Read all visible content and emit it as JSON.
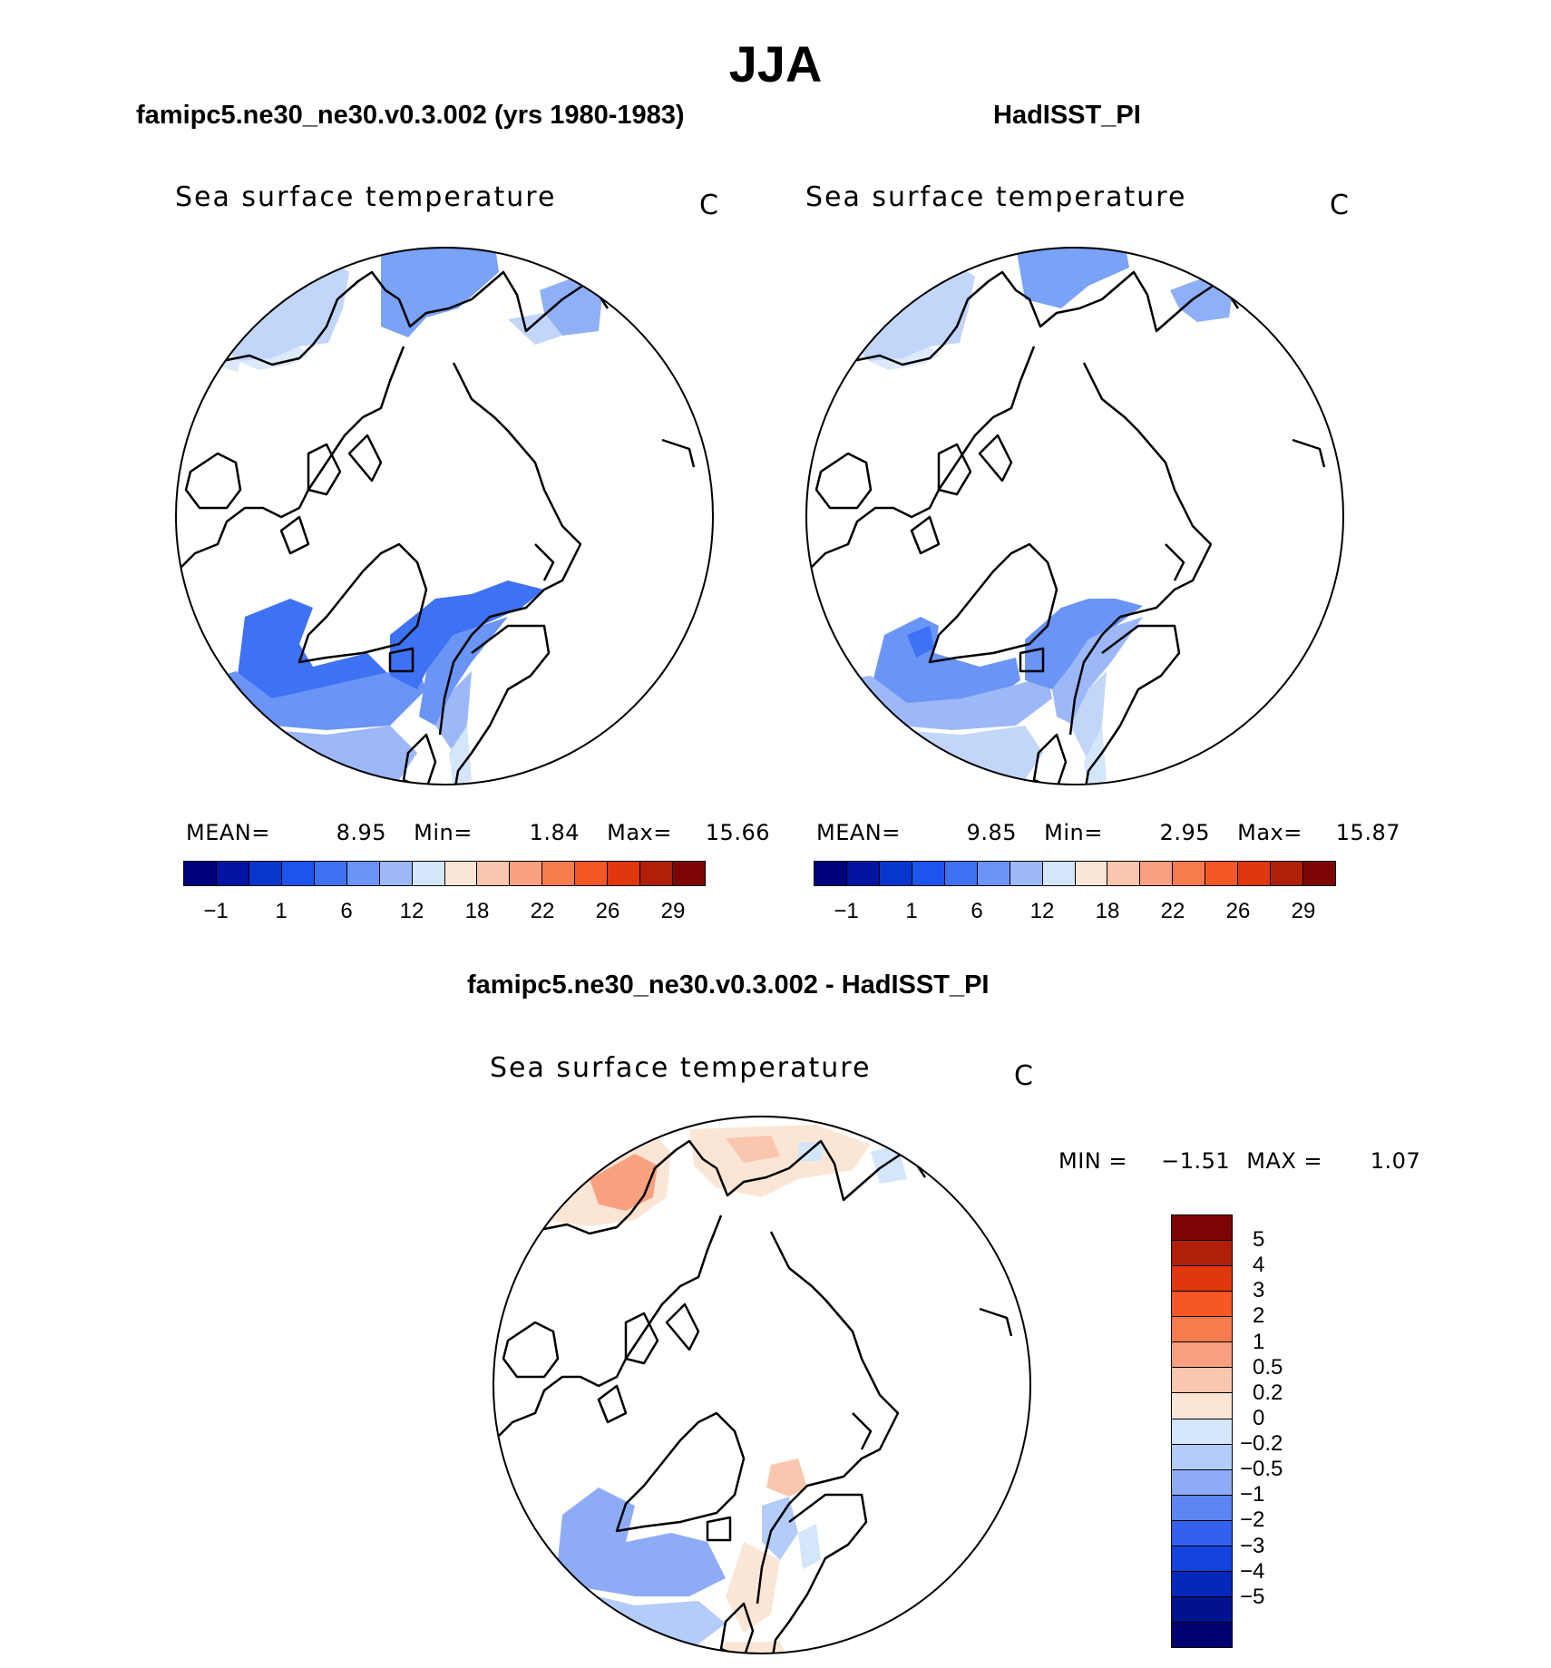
{
  "title": "JJA",
  "panels": {
    "model": {
      "title": "famipc5.ne30_ne30.v0.3.002 (yrs 1980-1983)",
      "variable": "Sea surface temperature",
      "units": "C",
      "mean_label": "MEAN=",
      "mean": "8.95",
      "min_label": "Min=",
      "min": "1.84",
      "max_label": "Max=",
      "max": "15.66"
    },
    "obs": {
      "title": "HadISST_PI",
      "variable": "Sea surface temperature",
      "units": "C",
      "mean_label": "MEAN=",
      "mean": "9.85",
      "min_label": "Min=",
      "min": "2.95",
      "max_label": "Max=",
      "max": "15.87"
    },
    "diff": {
      "title": "famipc5.ne30_ne30.v0.3.002 - HadISST_PI",
      "variable": "Sea surface temperature",
      "units": "C",
      "min_label": "MIN =",
      "min": "−1.51",
      "max_label": "MAX =",
      "max": "1.07"
    }
  },
  "colorbar_main": {
    "colors": [
      "#00007e",
      "#0214a4",
      "#0836cc",
      "#1c54ee",
      "#3e72f4",
      "#6a94f6",
      "#9cb8f8",
      "#d4e6fa",
      "#fbe6d6",
      "#fbc6ae",
      "#f9a080",
      "#f97c4e",
      "#f65724",
      "#e0380c",
      "#b02008",
      "#7e0404"
    ],
    "labels": [
      "−1",
      "1",
      "6",
      "12",
      "18",
      "22",
      "26",
      "29"
    ]
  },
  "colorbar_diff": {
    "colors": [
      "#7e0404",
      "#b02008",
      "#e0380c",
      "#f65724",
      "#f97c4e",
      "#f9a080",
      "#fbc6ae",
      "#fbe6d6",
      "#d4e6fa",
      "#b4ccfa",
      "#8eacf6",
      "#5c86f2",
      "#3460ee",
      "#1444e0",
      "#0628b8",
      "#001290",
      "#000070"
    ],
    "labels": [
      "5",
      "4",
      "3",
      "2",
      "1",
      "0.5",
      "0.2",
      "0",
      "−0.2",
      "−0.5",
      "−1",
      "−2",
      "−3",
      "−4",
      "−5"
    ]
  }
}
